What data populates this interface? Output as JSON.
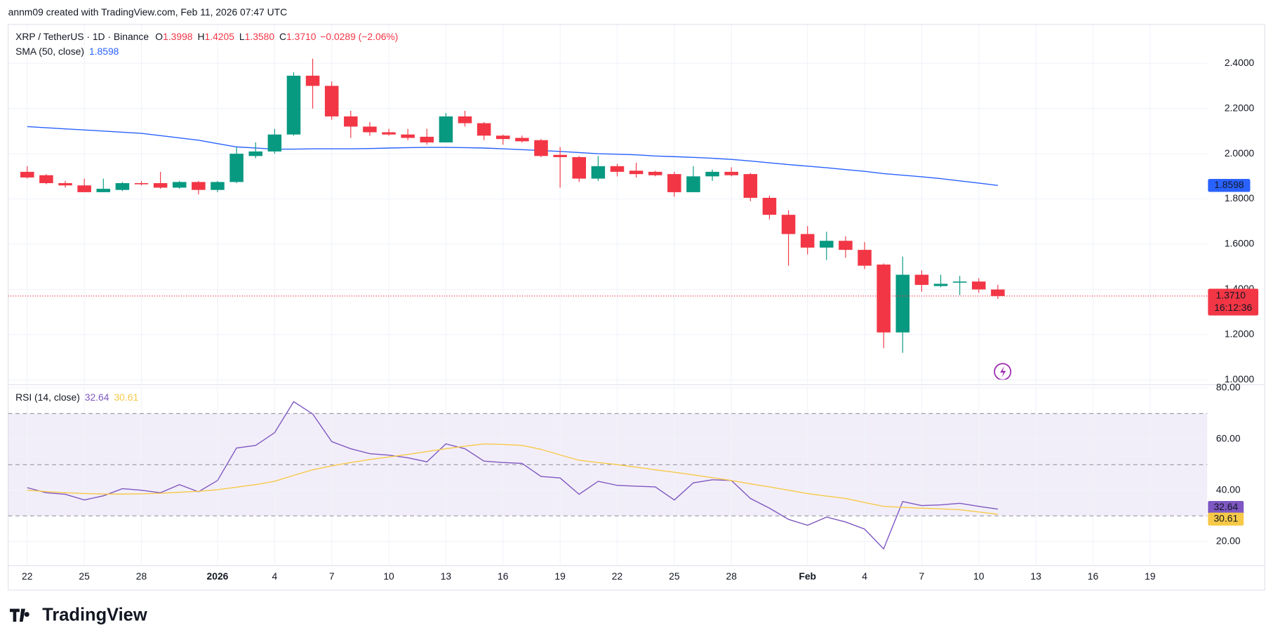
{
  "header": {
    "credit": "annm09 created with TradingView.com, Feb 11, 2026 07:47 UTC",
    "brand": "TradingView"
  },
  "chart_data": [
    {
      "type": "candlestick",
      "title": "XRP / TetherUS · 1D · Binance",
      "ohlc_labels": [
        "O",
        "H",
        "L",
        "C"
      ],
      "value_labels": [
        "1.3998",
        "1.4205",
        "1.3580",
        "1.3710"
      ],
      "change_label": "−0.0289 (−2.06%)",
      "countdown": "16:12:36",
      "up_color": "#089981",
      "down_color": "#f23645",
      "x": [
        "2025-12-22",
        "2025-12-23",
        "2025-12-24",
        "2025-12-25",
        "2025-12-26",
        "2025-12-27",
        "2025-12-28",
        "2025-12-29",
        "2025-12-30",
        "2025-12-31",
        "2026-01-01",
        "2026-01-02",
        "2026-01-03",
        "2026-01-04",
        "2026-01-05",
        "2026-01-06",
        "2026-01-07",
        "2026-01-08",
        "2026-01-09",
        "2026-01-10",
        "2026-01-11",
        "2026-01-12",
        "2026-01-13",
        "2026-01-14",
        "2026-01-15",
        "2026-01-16",
        "2026-01-17",
        "2026-01-18",
        "2026-01-19",
        "2026-01-20",
        "2026-01-21",
        "2026-01-22",
        "2026-01-23",
        "2026-01-24",
        "2026-01-25",
        "2026-01-26",
        "2026-01-27",
        "2026-01-28",
        "2026-01-29",
        "2026-01-30",
        "2026-01-31",
        "2026-02-01",
        "2026-02-02",
        "2026-02-03",
        "2026-02-04",
        "2026-02-05",
        "2026-02-06",
        "2026-02-07",
        "2026-02-08",
        "2026-02-09",
        "2026-02-10",
        "2026-02-11"
      ],
      "open": [
        1.92,
        1.905,
        1.87,
        1.86,
        1.83,
        1.84,
        1.87,
        1.87,
        1.85,
        1.875,
        1.84,
        1.875,
        1.99,
        2.01,
        2.085,
        2.345,
        2.3,
        2.165,
        2.12,
        2.095,
        2.085,
        2.075,
        2.05,
        2.165,
        2.135,
        2.08,
        2.07,
        2.06,
        1.995,
        1.985,
        1.89,
        1.945,
        1.925,
        1.92,
        1.91,
        1.83,
        1.9,
        1.92,
        1.91,
        1.805,
        1.73,
        1.645,
        1.585,
        1.615,
        1.575,
        1.51,
        1.21,
        1.465,
        1.415,
        1.43,
        1.435,
        1.3998
      ],
      "high": [
        1.945,
        1.91,
        1.88,
        1.89,
        1.89,
        1.875,
        1.88,
        1.92,
        1.88,
        1.88,
        1.88,
        2.03,
        2.05,
        2.11,
        2.36,
        2.42,
        2.32,
        2.19,
        2.14,
        2.11,
        2.11,
        2.11,
        2.18,
        2.19,
        2.14,
        2.085,
        2.08,
        2.065,
        2.03,
        1.99,
        1.99,
        1.955,
        1.96,
        1.925,
        1.92,
        1.945,
        1.93,
        1.94,
        1.915,
        1.815,
        1.75,
        1.68,
        1.655,
        1.635,
        1.61,
        1.515,
        1.545,
        1.485,
        1.465,
        1.46,
        1.45,
        1.4205
      ],
      "low": [
        1.89,
        1.865,
        1.85,
        1.83,
        1.83,
        1.835,
        1.86,
        1.845,
        1.845,
        1.82,
        1.83,
        1.87,
        1.98,
        2.0,
        2.08,
        2.2,
        2.15,
        2.07,
        2.08,
        2.08,
        2.06,
        2.04,
        2.05,
        2.12,
        2.06,
        2.04,
        2.05,
        1.985,
        1.85,
        1.875,
        1.88,
        1.9,
        1.895,
        1.9,
        1.81,
        1.83,
        1.88,
        1.9,
        1.79,
        1.71,
        1.505,
        1.555,
        1.53,
        1.54,
        1.49,
        1.14,
        1.12,
        1.39,
        1.41,
        1.375,
        1.385,
        1.358
      ],
      "close": [
        1.895,
        1.87,
        1.86,
        1.83,
        1.845,
        1.87,
        1.865,
        1.85,
        1.875,
        1.84,
        1.875,
        2.0,
        2.01,
        2.085,
        2.345,
        2.3,
        2.165,
        2.12,
        2.095,
        2.085,
        2.07,
        2.05,
        2.165,
        2.135,
        2.08,
        2.065,
        2.055,
        1.99,
        1.985,
        1.89,
        1.945,
        1.92,
        1.91,
        1.905,
        1.83,
        1.9,
        1.92,
        1.905,
        1.805,
        1.73,
        1.645,
        1.585,
        1.615,
        1.575,
        1.505,
        1.21,
        1.465,
        1.42,
        1.425,
        1.435,
        1.4,
        1.371
      ],
      "series": [
        {
          "name": "SMA (50, close)",
          "color": "#2962ff",
          "values": [
            2.12,
            2.115,
            2.11,
            2.105,
            2.1,
            2.095,
            2.09,
            2.08,
            2.07,
            2.06,
            2.045,
            2.03,
            2.025,
            2.02,
            2.02,
            2.022,
            2.022,
            2.022,
            2.023,
            2.025,
            2.027,
            2.028,
            2.028,
            2.027,
            2.025,
            2.022,
            2.018,
            2.014,
            2.01,
            2.005,
            2.0,
            1.998,
            1.995,
            1.99,
            1.987,
            1.984,
            1.98,
            1.975,
            1.968,
            1.96,
            1.952,
            1.945,
            1.938,
            1.93,
            1.922,
            1.912,
            1.905,
            1.898,
            1.89,
            1.88,
            1.87,
            1.8598
          ]
        }
      ],
      "ylim": [
        0.986,
        2.572
      ],
      "yticks": [
        {
          "value": 1.0,
          "label": "1.0000"
        },
        {
          "value": 1.2,
          "label": "1.2000"
        },
        {
          "value": 1.4,
          "label": "1.4000"
        },
        {
          "value": 1.6,
          "label": "1.6000"
        },
        {
          "value": 1.8,
          "label": "1.8000"
        },
        {
          "value": 2.0,
          "label": "2.0000"
        },
        {
          "value": 2.2,
          "label": "2.2000"
        },
        {
          "value": 2.4,
          "label": "2.4000"
        }
      ],
      "xlim": [
        "2025-12-21",
        "2026-02-22"
      ],
      "xticks": [
        {
          "value": "2025-12-22",
          "label": "22"
        },
        {
          "value": "2025-12-25",
          "label": "25"
        },
        {
          "value": "2025-12-28",
          "label": "28"
        },
        {
          "value": "2026-01-01",
          "label": "2026"
        },
        {
          "value": "2026-01-04",
          "label": "4"
        },
        {
          "value": "2026-01-07",
          "label": "7"
        },
        {
          "value": "2026-01-10",
          "label": "10"
        },
        {
          "value": "2026-01-13",
          "label": "13"
        },
        {
          "value": "2026-01-16",
          "label": "16"
        },
        {
          "value": "2026-01-19",
          "label": "19"
        },
        {
          "value": "2026-01-22",
          "label": "22"
        },
        {
          "value": "2026-01-25",
          "label": "25"
        },
        {
          "value": "2026-01-28",
          "label": "28"
        },
        {
          "value": "2026-02-01",
          "label": "Feb"
        },
        {
          "value": "2026-02-04",
          "label": "4"
        },
        {
          "value": "2026-02-07",
          "label": "7"
        },
        {
          "value": "2026-02-10",
          "label": "10"
        },
        {
          "value": "2026-02-13",
          "label": "13"
        },
        {
          "value": "2026-02-16",
          "label": "16"
        },
        {
          "value": "2026-02-19",
          "label": "19"
        }
      ],
      "grid": true
    },
    {
      "type": "line",
      "title": "RSI (14, close)",
      "series": [
        {
          "color": "#7e57c2",
          "values": [
            41,
            39,
            38.4,
            36.2,
            37.8,
            40.6,
            40,
            39,
            42.2,
            39.4,
            43.8,
            56.5,
            57.5,
            62.5,
            74.6,
            69.8,
            59,
            56.2,
            54.3,
            53.7,
            52.7,
            51.1,
            58.1,
            56.2,
            51.4,
            50.8,
            50.5,
            45.4,
            44.8,
            38.4,
            43.5,
            41.9,
            41.6,
            41.3,
            36.2,
            42.9,
            44.1,
            43.8,
            36.8,
            33,
            28.6,
            26.3,
            29.5,
            27.6,
            24.8,
            17.1,
            35.6,
            34,
            34.3,
            34.9,
            33.7,
            32.64
          ]
        },
        {
          "color": "#f7c948",
          "values": [
            40,
            39.5,
            39,
            38.7,
            38.5,
            38.5,
            38.6,
            38.8,
            39.2,
            39.6,
            40.2,
            41.2,
            42.2,
            43.5,
            45.8,
            48,
            49.5,
            50.8,
            52,
            53,
            54,
            55.1,
            56.2,
            57.2,
            58.1,
            57.9,
            57.5,
            56,
            53.8,
            51.7,
            50.8,
            50,
            49,
            48,
            47,
            46,
            44.9,
            43.8,
            42.5,
            41.3,
            40,
            38.7,
            37.7,
            36.8,
            35.2,
            33.7,
            33.3,
            33,
            32.7,
            32.4,
            31.5,
            30.61
          ]
        }
      ],
      "band": [
        30,
        70
      ],
      "levels": [
        70,
        50,
        30
      ],
      "ylim": [
        10.5,
        80.6
      ],
      "yticks": [
        {
          "value": 20,
          "label": "20.00"
        },
        {
          "value": 40,
          "label": "40.00"
        },
        {
          "value": 60,
          "label": "60.00"
        },
        {
          "value": 80,
          "label": "80.00"
        }
      ]
    }
  ]
}
